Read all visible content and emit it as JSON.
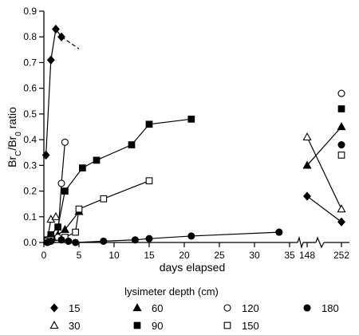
{
  "chart_data": {
    "type": "scatter",
    "ylabel": {
      "prefix": "Br",
      "sub1": "C",
      "mid": "/Br",
      "sub2": "0",
      "suffix": " ratio"
    },
    "xlabel": "days elapsed",
    "ylim": [
      0,
      0.9
    ],
    "yticks": [
      "0.0",
      "0.1",
      "0.2",
      "0.3",
      "0.4",
      "0.5",
      "0.6",
      "0.7",
      "0.8",
      "0.9"
    ],
    "xlim_main": [
      0,
      35
    ],
    "xticks_main": [
      "0",
      "5",
      "10",
      "15",
      "20",
      "25",
      "30",
      "35"
    ],
    "broken_axis_ticks": [
      "148",
      "252"
    ],
    "grid": false,
    "legend": {
      "title": "lysimeter depth (cm)",
      "position": "bottom",
      "entries": [
        "15",
        "30",
        "60",
        "90",
        "120",
        "150",
        "180"
      ]
    },
    "series": [
      {
        "name": "15",
        "marker": "filled-diamond",
        "points": [
          [
            0.3,
            0.34
          ],
          [
            1.0,
            0.71
          ],
          [
            1.7,
            0.83
          ],
          [
            2.5,
            0.8
          ]
        ],
        "late": [
          [
            148,
            0.18
          ],
          [
            252,
            0.08
          ]
        ],
        "dashed_tail": true
      },
      {
        "name": "30",
        "marker": "open-triangle",
        "points": [
          [
            0.5,
            0.01
          ],
          [
            1.0,
            0.09
          ],
          [
            1.7,
            0.1
          ]
        ],
        "late": [
          [
            148,
            0.41
          ],
          [
            252,
            0.13
          ]
        ]
      },
      {
        "name": "60",
        "marker": "filled-triangle",
        "points": [
          [
            0.5,
            0.005
          ],
          [
            1.0,
            0.02
          ],
          [
            2.0,
            0.03
          ],
          [
            3.0,
            0.05
          ],
          [
            5.0,
            0.12
          ]
        ],
        "late": [
          [
            148,
            0.3
          ],
          [
            252,
            0.45
          ]
        ]
      },
      {
        "name": "90",
        "marker": "filled-square",
        "points": [
          [
            0.5,
            0.01
          ],
          [
            1.0,
            0.03
          ],
          [
            2.0,
            0.06
          ],
          [
            3.0,
            0.2
          ],
          [
            5.5,
            0.29
          ],
          [
            7.5,
            0.32
          ],
          [
            12.5,
            0.38
          ],
          [
            15.0,
            0.46
          ],
          [
            21.0,
            0.48
          ]
        ],
        "late": [
          [
            252,
            0.52
          ]
        ]
      },
      {
        "name": "120",
        "marker": "open-circle",
        "points": [
          [
            0.5,
            0.01
          ],
          [
            1.0,
            0.01
          ],
          [
            2.0,
            0.02
          ],
          [
            2.5,
            0.23
          ],
          [
            3.0,
            0.39
          ]
        ],
        "late": [
          [
            252,
            0.58
          ]
        ]
      },
      {
        "name": "150",
        "marker": "open-square",
        "points": [
          [
            0.5,
            0.005
          ],
          [
            1.0,
            0.01
          ],
          [
            3.0,
            0.02
          ],
          [
            4.5,
            0.04
          ],
          [
            5.0,
            0.13
          ],
          [
            8.5,
            0.17
          ],
          [
            15.0,
            0.24
          ]
        ],
        "late": [
          [
            252,
            0.34
          ]
        ]
      },
      {
        "name": "180",
        "marker": "filled-circle",
        "points": [
          [
            0.5,
            0.0
          ],
          [
            1.0,
            0.005
          ],
          [
            2.5,
            0.01
          ],
          [
            3.5,
            0.005
          ],
          [
            4.5,
            0.0
          ],
          [
            8.5,
            0.005
          ],
          [
            13.0,
            0.01
          ],
          [
            15.0,
            0.015
          ],
          [
            21.0,
            0.025
          ],
          [
            33.5,
            0.04
          ]
        ],
        "late": [
          [
            252,
            0.38
          ]
        ]
      }
    ]
  }
}
